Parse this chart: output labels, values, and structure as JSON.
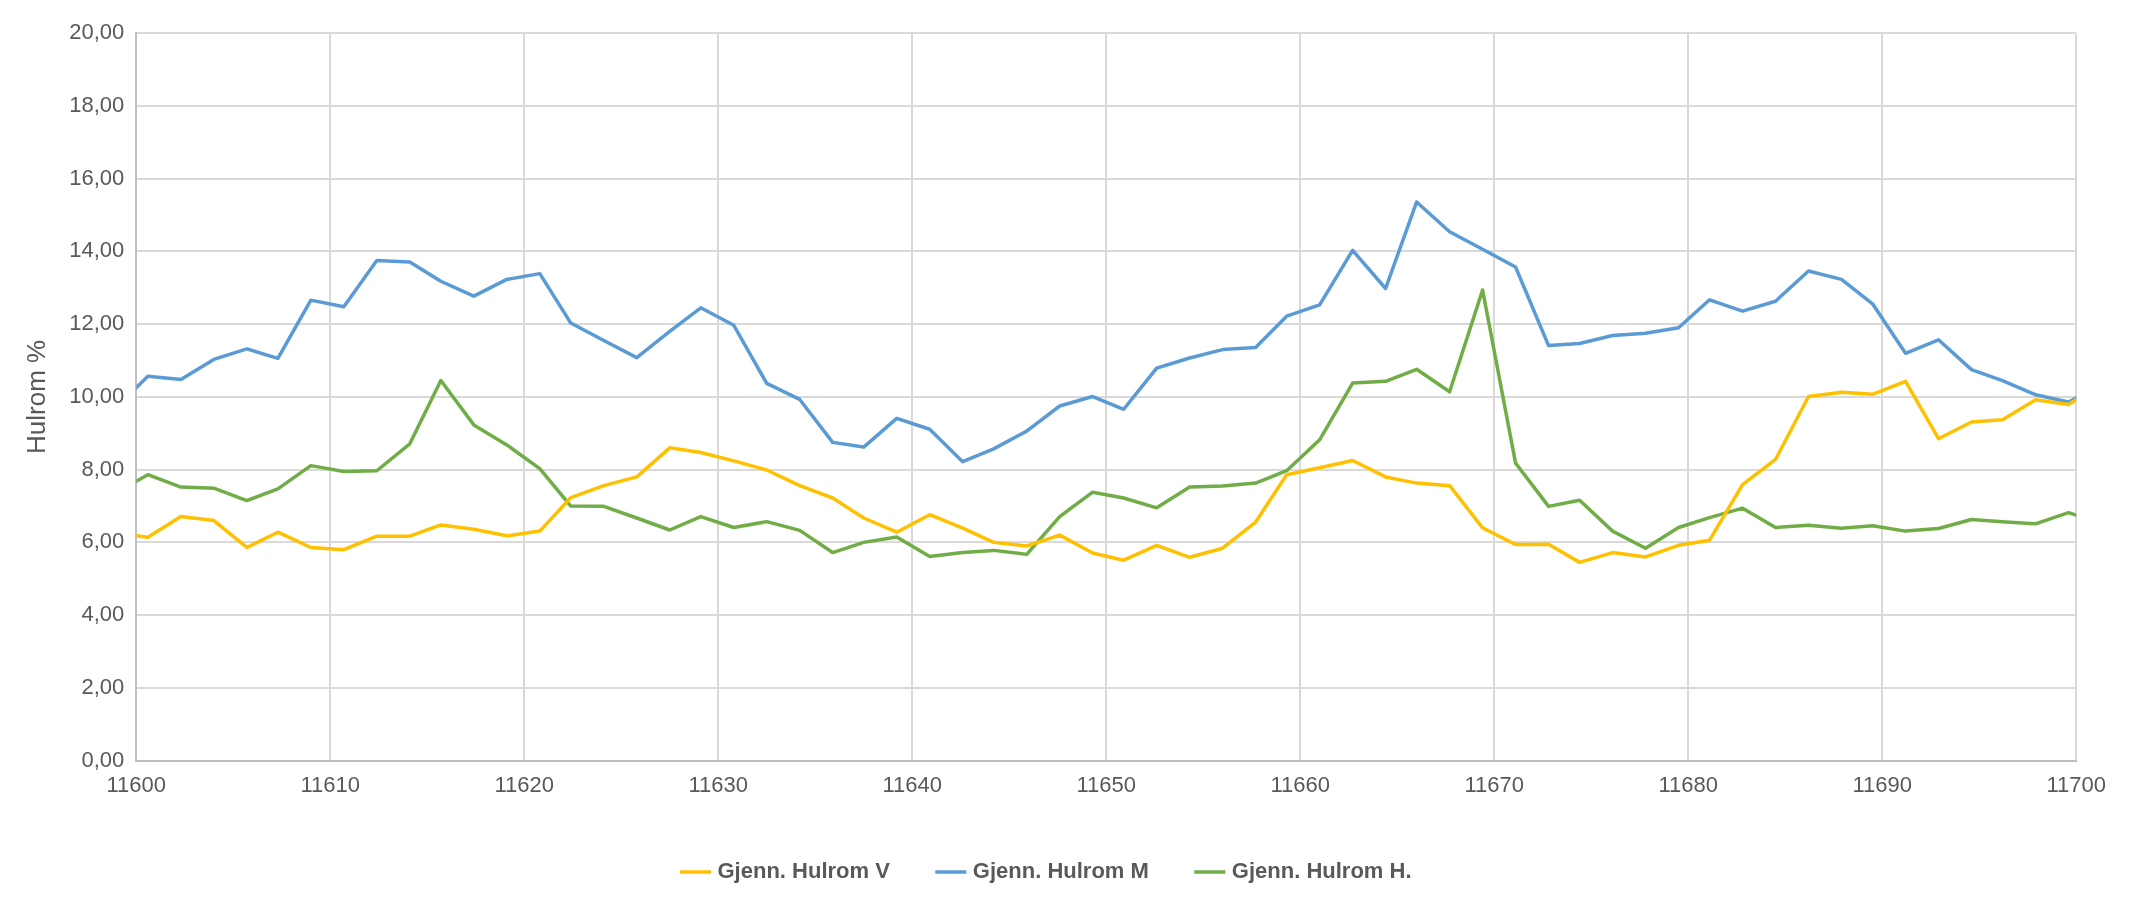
{
  "chart_data": {
    "type": "line",
    "ylabel": "Hulrom %",
    "x": [
      11600,
      11600.6,
      11602.3,
      11604.0,
      11605.7,
      11607.3,
      11609.0,
      11610.7,
      11612.4,
      11614.1,
      11615.7,
      11617.4,
      11619.1,
      11620.8,
      11622.4,
      11624.1,
      11625.8,
      11627.5,
      11629.1,
      11630.8,
      11632.5,
      11634.2,
      11635.9,
      11637.5,
      11639.2,
      11640.9,
      11642.6,
      11644.2,
      11645.9,
      11647.6,
      11649.3,
      11650.9,
      11652.6,
      11654.3,
      11656.0,
      11657.7,
      11659.3,
      11661.0,
      11662.7,
      11664.4,
      11666.0,
      11667.7,
      11669.4,
      11671.1,
      11672.8,
      11674.4,
      11676.1,
      11677.8,
      11679.5,
      11681.1,
      11682.8,
      11684.5,
      11686.2,
      11687.9,
      11689.5,
      11691.2,
      11692.9,
      11694.6,
      11696.2,
      11697.9,
      11699.6,
      11700
    ],
    "series": [
      {
        "name": "Gjenn. Hulrom V",
        "color": "#ffc000",
        "values": [
          6.18,
          6.14,
          6.71,
          6.6,
          5.86,
          6.28,
          5.86,
          5.8,
          6.17,
          6.17,
          6.48,
          6.36,
          6.18,
          6.31,
          7.23,
          7.56,
          7.8,
          8.6,
          8.47,
          8.24,
          7.99,
          7.56,
          7.22,
          6.67,
          6.28,
          6.76,
          6.39,
          6.0,
          5.9,
          6.2,
          5.71,
          5.51,
          5.92,
          5.59,
          5.84,
          6.56,
          7.86,
          8.05,
          8.25,
          7.8,
          7.63,
          7.56,
          6.4,
          5.94,
          5.95,
          5.45,
          5.72,
          5.6,
          5.92,
          6.06,
          7.59,
          8.28,
          10.01,
          10.13,
          10.07,
          10.43,
          8.85,
          9.31,
          9.37,
          9.92,
          9.79,
          9.92
        ]
      },
      {
        "name": "Gjenn. Hulrom M",
        "color": "#5b9bd5",
        "values": [
          10.25,
          10.57,
          10.48,
          11.03,
          11.32,
          11.06,
          12.66,
          12.48,
          13.75,
          13.71,
          13.18,
          12.77,
          13.23,
          13.39,
          12.03,
          11.55,
          11.08,
          11.8,
          12.45,
          11.97,
          10.37,
          9.93,
          8.75,
          8.62,
          9.41,
          9.11,
          8.22,
          8.57,
          9.06,
          9.75,
          10.01,
          9.66,
          10.79,
          11.07,
          11.3,
          11.36,
          12.22,
          12.53,
          14.03,
          12.98,
          15.36,
          14.54,
          14.06,
          13.57,
          11.41,
          11.47,
          11.69,
          11.75,
          11.9,
          12.67,
          12.36,
          12.63,
          13.46,
          13.23,
          12.56,
          11.2,
          11.57,
          10.75,
          10.45,
          10.06,
          9.86,
          9.97
        ]
      },
      {
        "name": "Gjenn. Hulrom H.",
        "color": "#70ad47",
        "values": [
          7.68,
          7.86,
          7.52,
          7.49,
          7.15,
          7.47,
          8.11,
          7.95,
          7.97,
          8.71,
          10.45,
          9.23,
          8.68,
          8.03,
          7.0,
          6.99,
          6.67,
          6.34,
          6.71,
          6.41,
          6.57,
          6.33,
          5.72,
          6.0,
          6.15,
          5.61,
          5.72,
          5.78,
          5.67,
          6.71,
          7.38,
          7.22,
          6.95,
          7.52,
          7.55,
          7.63,
          7.97,
          8.82,
          10.38,
          10.43,
          10.76,
          10.14,
          12.94,
          8.18,
          6.99,
          7.16,
          6.31,
          5.84,
          6.41,
          6.68,
          6.94,
          6.41,
          6.47,
          6.39,
          6.46,
          6.31,
          6.38,
          6.63,
          6.57,
          6.51,
          6.82,
          6.75
        ]
      }
    ],
    "xlim": [
      11600,
      11700
    ],
    "xticks": [
      11600,
      11610,
      11620,
      11630,
      11640,
      11650,
      11660,
      11670,
      11680,
      11690,
      11700
    ],
    "ylim": [
      0,
      20
    ],
    "yticks": [
      {
        "value": 0,
        "label": "0,00"
      },
      {
        "value": 2,
        "label": "2,00"
      },
      {
        "value": 4,
        "label": "4,00"
      },
      {
        "value": 6,
        "label": "6,00"
      },
      {
        "value": 8,
        "label": "8,00"
      },
      {
        "value": 10,
        "label": "10,00"
      },
      {
        "value": 12,
        "label": "12,00"
      },
      {
        "value": 14,
        "label": "14,00"
      },
      {
        "value": 16,
        "label": "16,00"
      },
      {
        "value": 18,
        "label": "18,00"
      },
      {
        "value": 20,
        "label": "20,00"
      }
    ],
    "grid": true,
    "legend": "bottom",
    "marker": "none",
    "line_style": "solid"
  }
}
